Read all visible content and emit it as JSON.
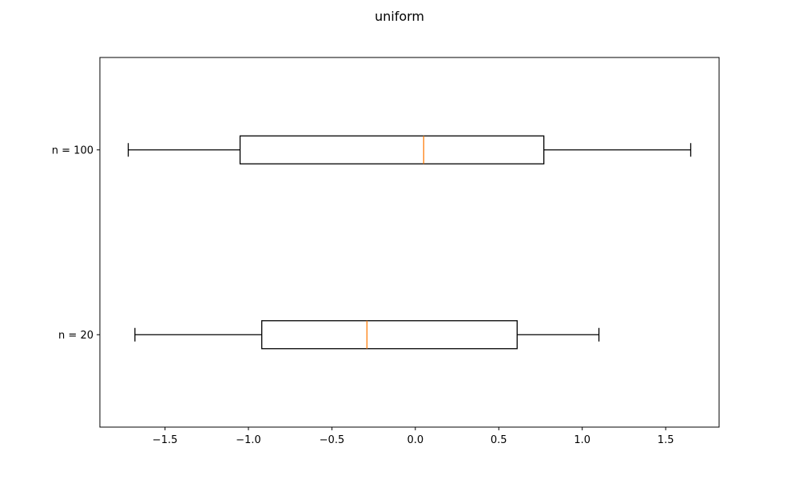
{
  "chart_data": {
    "type": "boxplot",
    "orientation": "horizontal",
    "title": "uniform",
    "xlabel": "",
    "ylabel": "",
    "xlim": [
      -1.89,
      1.82
    ],
    "xticks": [
      -1.5,
      -1.0,
      -0.5,
      0.0,
      0.5,
      1.0,
      1.5
    ],
    "xtick_labels": [
      "−1.5",
      "−1.0",
      "−0.5",
      "0.0",
      "0.5",
      "1.0",
      "1.5"
    ],
    "grid": false,
    "legend": "none",
    "categories": [
      "n = 20",
      "n = 100"
    ],
    "boxes": [
      {
        "label": "n = 20",
        "whisker_low": -1.68,
        "q1": -0.92,
        "median": -0.29,
        "q3": 0.61,
        "whisker_high": 1.1
      },
      {
        "label": "n = 100",
        "whisker_low": -1.72,
        "q1": -1.05,
        "median": 0.05,
        "q3": 0.77,
        "whisker_high": 1.65
      }
    ],
    "colors": {
      "box": "#000000",
      "median": "#ff7f0e",
      "background": "#ffffff"
    }
  }
}
